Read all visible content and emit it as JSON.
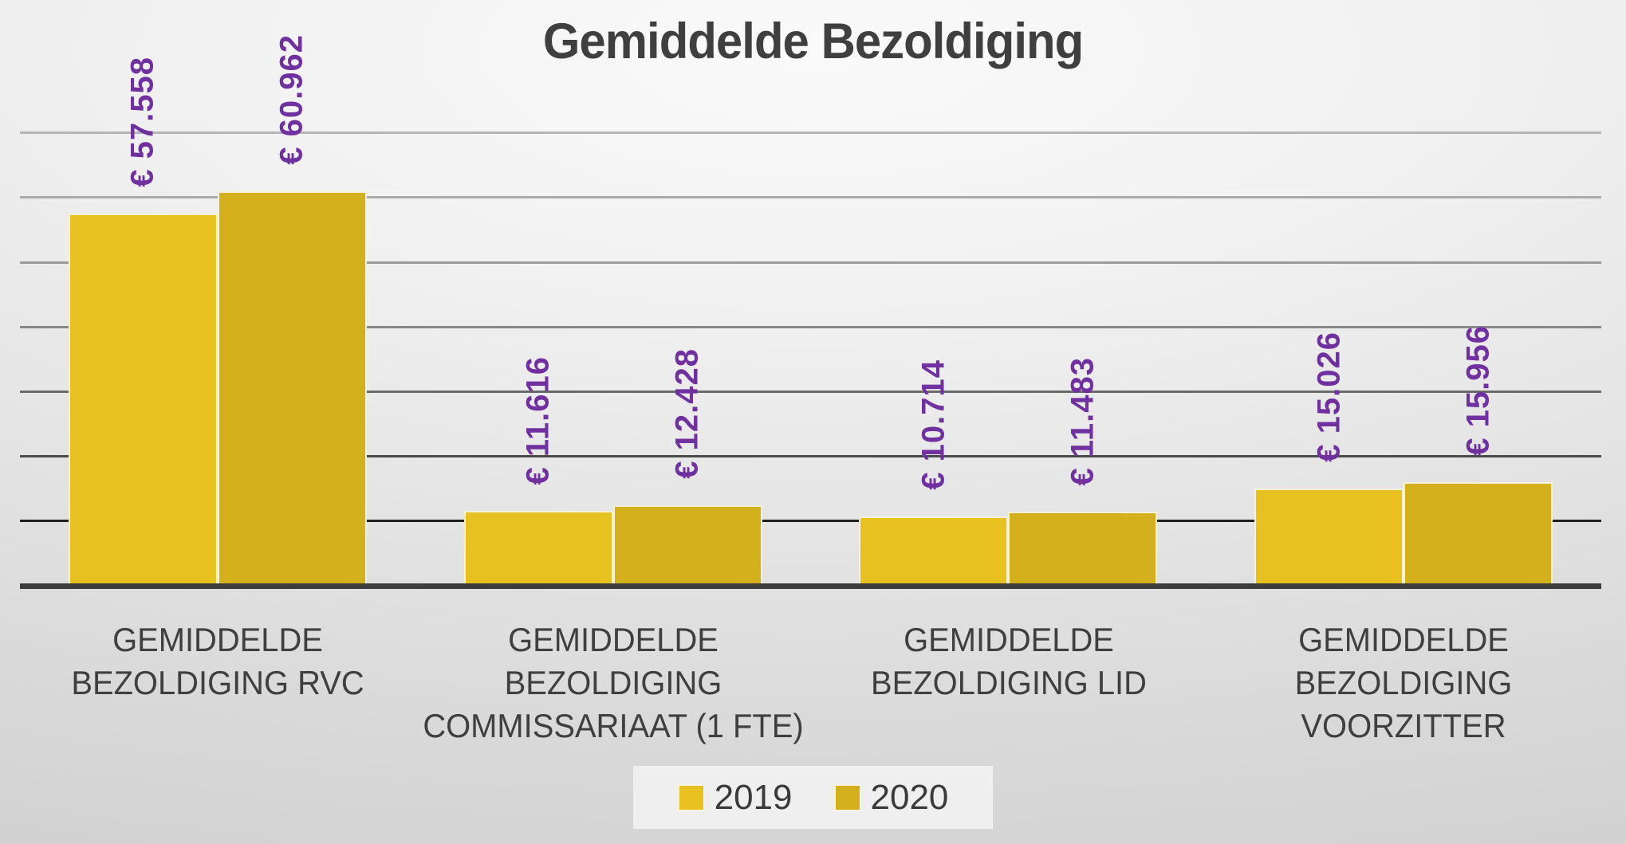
{
  "title": "Gemiddelde Bezoldiging",
  "chart_data": {
    "type": "bar",
    "title": "Gemiddelde Bezoldiging",
    "categories": [
      "GEMIDDELDE BEZOLDIGING RVC",
      "GEMIDDELDE BEZOLDIGING COMMISSARIAAT (1 FTE)",
      "GEMIDDELDE BEZOLDIGING LID",
      "GEMIDDELDE BEZOLDIGING VOORZITTER"
    ],
    "category_lines": [
      [
        "GEMIDDELDE",
        "BEZOLDIGING RVC"
      ],
      [
        "GEMIDDELDE",
        "BEZOLDIGING",
        "COMMISSARIAAT (1 FTE)"
      ],
      [
        "GEMIDDELDE",
        "BEZOLDIGING LID"
      ],
      [
        "GEMIDDELDE",
        "BEZOLDIGING",
        "VOORZITTER"
      ]
    ],
    "series": [
      {
        "name": "2019",
        "color": "#e6c120",
        "values": [
          57558,
          11616,
          10714,
          15026
        ],
        "labels": [
          "€ 57.558",
          "€ 11.616",
          "€ 10.714",
          "€ 15.026"
        ]
      },
      {
        "name": "2020",
        "color": "#d4b01d",
        "values": [
          60962,
          12428,
          11483,
          15956
        ],
        "labels": [
          "€ 60.962",
          "€ 12.428",
          "€ 11.483",
          "€ 15.956"
        ]
      }
    ],
    "xlabel": "",
    "ylabel": "",
    "ylim": [
      0,
      70000
    ],
    "gridline_step": 10000,
    "grid": true,
    "y_tick_labels_visible": false,
    "legend_position": "bottom",
    "data_label_color": "#7030a0",
    "axis_text_color": "#3f3f3f"
  },
  "legend": {
    "items": [
      {
        "label": "2019",
        "color": "#e6c120"
      },
      {
        "label": "2020",
        "color": "#d4b01d"
      }
    ]
  }
}
